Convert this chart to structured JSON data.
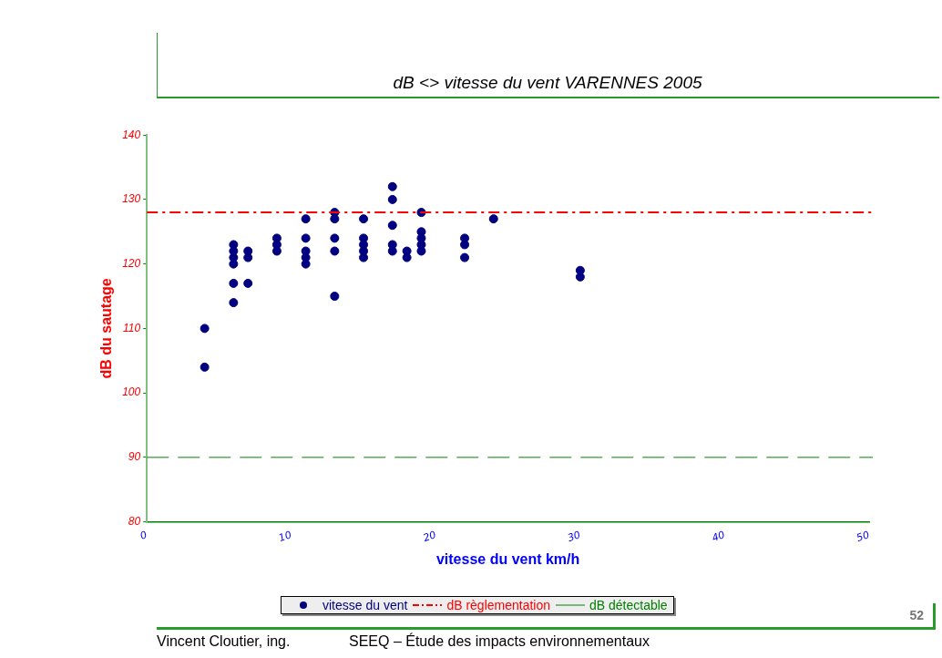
{
  "chart_data": {
    "type": "scatter",
    "title": "dB <> vitesse du vent VARENNES 2005",
    "xlabel": "vitesse du vent km/h",
    "ylabel": "dB du sautage",
    "xlim": [
      0,
      50
    ],
    "xticks": [
      0,
      10,
      20,
      30,
      40,
      50
    ],
    "ylim": [
      80,
      140
    ],
    "yticks": [
      80,
      90,
      100,
      110,
      120,
      130,
      140
    ],
    "grid": false,
    "legend": "bottom",
    "marker": "circle",
    "series": [
      {
        "name": "vitesse du vent",
        "color": "#000080",
        "x": [
          4,
          4,
          6,
          6,
          6,
          6,
          6,
          6,
          7,
          7,
          7,
          9,
          9,
          9,
          11,
          11,
          11,
          11,
          11,
          13,
          13,
          13,
          13,
          13,
          15,
          15,
          15,
          15,
          15,
          17,
          17,
          17,
          17,
          17,
          18,
          18,
          19,
          19,
          19,
          19,
          19,
          22,
          22,
          22,
          24,
          30,
          30
        ],
        "values": [
          110,
          104,
          123,
          122,
          121,
          120,
          117,
          114,
          122,
          121,
          117,
          124,
          123,
          122,
          127,
          124,
          122,
          121,
          120,
          128,
          127,
          124,
          122,
          115,
          127,
          124,
          123,
          122,
          121,
          132,
          130,
          126,
          123,
          122,
          122,
          121,
          128,
          125,
          124,
          123,
          122,
          124,
          123,
          121,
          127,
          119,
          118
        ]
      }
    ],
    "ref_lines": [
      {
        "axis": "y",
        "value": 128,
        "label": "dB règlementation",
        "color": "#ff0000",
        "line_style": "dashdot"
      },
      {
        "axis": "y",
        "value": 90,
        "label": "dB détectable",
        "color": "#008000",
        "line_style": "dashed"
      }
    ],
    "annotations": [
      "52",
      "Vincent Cloutier, ing.",
      "SEEQ – Étude des impacts environnementaux"
    ]
  }
}
